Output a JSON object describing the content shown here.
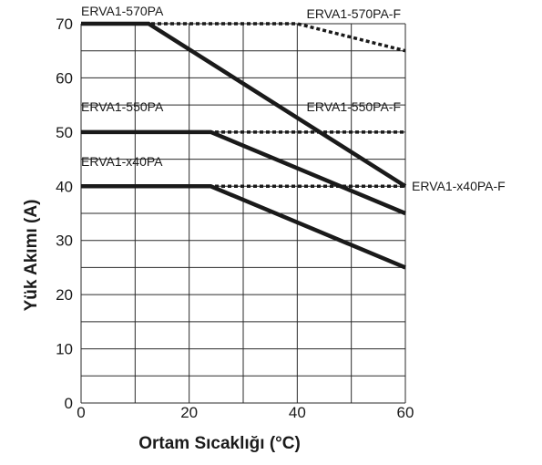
{
  "chart_data": {
    "type": "line",
    "title": "",
    "xlabel": "Ortam Sıcaklığı (°C)",
    "ylabel": "Yük Akımı (A)",
    "xlim": [
      0,
      60
    ],
    "ylim": [
      0,
      70
    ],
    "x_ticks": [
      "0",
      "20",
      "40",
      "60"
    ],
    "y_ticks": [
      "0",
      "10",
      "20",
      "30",
      "40",
      "50",
      "60",
      "70"
    ],
    "grid": true,
    "grid_x_step": 10,
    "grid_y_step": 5,
    "series": [
      {
        "name": "ERVA1-570PA",
        "style": "solid",
        "color": "#1a1a1a",
        "x": [
          0,
          12.5,
          60
        ],
        "y": [
          70,
          70,
          40
        ]
      },
      {
        "name": "ERVA1-570PA-F",
        "style": "dotted",
        "color": "#1a1a1a",
        "x": [
          0,
          40,
          60
        ],
        "y": [
          70,
          70,
          65
        ]
      },
      {
        "name": "ERVA1-550PA",
        "style": "solid",
        "color": "#1a1a1a",
        "x": [
          0,
          24,
          60
        ],
        "y": [
          50,
          50,
          35
        ]
      },
      {
        "name": "ERVA1-550PA-F",
        "style": "dotted",
        "color": "#1a1a1a",
        "x": [
          0,
          60
        ],
        "y": [
          50,
          50
        ]
      },
      {
        "name": "ERVA1-x40PA",
        "style": "solid",
        "color": "#1a1a1a",
        "x": [
          0,
          24,
          60
        ],
        "y": [
          40,
          40,
          25
        ]
      },
      {
        "name": "ERVA1-x40PA-F",
        "style": "dotted",
        "color": "#1a1a1a",
        "x": [
          0,
          60
        ],
        "y": [
          40,
          40
        ]
      }
    ]
  }
}
